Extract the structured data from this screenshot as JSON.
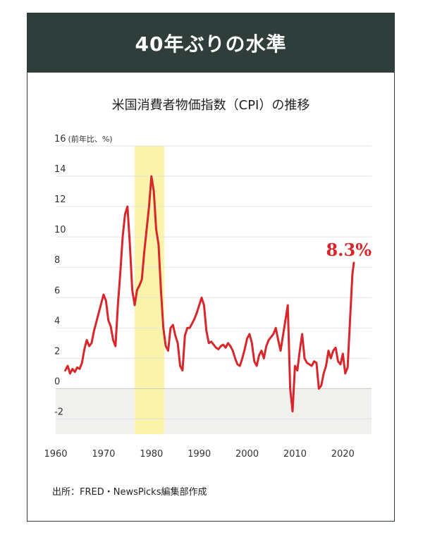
{
  "header": {
    "title": "40年ぶりの水準"
  },
  "chart_data": {
    "type": "line",
    "title": "米国消費者物価指数（CPI）の推移",
    "ylabel": "(前年比、%)",
    "ylim": [
      -3,
      16
    ],
    "xlim": [
      1960,
      2026
    ],
    "y_ticks": [
      16,
      14,
      12,
      10,
      8,
      6,
      4,
      2,
      0,
      -2
    ],
    "x_ticks": [
      1960,
      1970,
      1980,
      1990,
      2000,
      2010,
      2020
    ],
    "highlight_band": {
      "from": 1976.5,
      "to": 1982.7,
      "color": "#fbf3a9"
    },
    "negative_zone_color": "#f0f0ef",
    "series_color": "#d8262b",
    "grid": true,
    "annotation": {
      "text": "8.3%",
      "x": 2022.3,
      "y": 8.3
    },
    "series": [
      {
        "x": [
          1962.0,
          1962.5,
          1963.0,
          1963.5,
          1964.0,
          1964.5,
          1965.0,
          1965.5,
          1966.0,
          1966.5,
          1967.0,
          1967.5,
          1968.0,
          1968.5,
          1969.0,
          1969.5,
          1970.0,
          1970.5,
          1971.0,
          1971.5,
          1972.0,
          1972.5,
          1973.0,
          1973.5,
          1974.0,
          1974.5,
          1975.0,
          1975.5,
          1976.0,
          1976.5,
          1977.0,
          1977.5,
          1978.0,
          1978.5,
          1979.0,
          1979.5,
          1980.0,
          1980.5,
          1981.0,
          1981.5,
          1982.0,
          1982.5,
          1983.0,
          1983.5,
          1984.0,
          1984.5,
          1985.0,
          1985.5,
          1986.0,
          1986.5,
          1987.0,
          1987.5,
          1988.0,
          1988.5,
          1989.0,
          1989.5,
          1990.0,
          1990.5,
          1991.0,
          1991.5,
          1992.0,
          1992.5,
          1993.0,
          1993.5,
          1994.0,
          1994.5,
          1995.0,
          1995.5,
          1996.0,
          1996.5,
          1997.0,
          1997.5,
          1998.0,
          1998.5,
          1999.0,
          1999.5,
          2000.0,
          2000.5,
          2001.0,
          2001.5,
          2002.0,
          2002.5,
          2003.0,
          2003.5,
          2004.0,
          2004.5,
          2005.0,
          2005.5,
          2006.0,
          2006.5,
          2007.0,
          2007.5,
          2008.0,
          2008.5,
          2009.0,
          2009.5,
          2010.0,
          2010.5,
          2011.0,
          2011.5,
          2012.0,
          2012.5,
          2013.0,
          2013.5,
          2014.0,
          2014.5,
          2015.0,
          2015.5,
          2016.0,
          2016.5,
          2017.0,
          2017.5,
          2018.0,
          2018.5,
          2019.0,
          2019.5,
          2020.0,
          2020.5,
          2021.0,
          2021.5,
          2022.0,
          2022.3
        ],
        "y": [
          1.2,
          1.5,
          1.0,
          1.3,
          1.1,
          1.4,
          1.3,
          1.7,
          2.6,
          3.2,
          2.8,
          3.0,
          3.8,
          4.4,
          5.0,
          5.6,
          6.2,
          5.8,
          4.5,
          4.1,
          3.2,
          2.8,
          5.5,
          7.6,
          10.0,
          11.5,
          12.0,
          9.5,
          6.5,
          5.5,
          6.5,
          6.8,
          7.2,
          9.0,
          10.5,
          12.0,
          14.0,
          13.0,
          10.5,
          9.5,
          6.5,
          4.0,
          2.8,
          2.5,
          4.0,
          4.2,
          3.5,
          3.0,
          1.5,
          1.2,
          3.5,
          4.0,
          4.0,
          4.3,
          4.6,
          5.0,
          5.5,
          6.0,
          5.5,
          3.8,
          3.0,
          3.1,
          2.9,
          2.7,
          2.6,
          2.8,
          2.9,
          2.7,
          3.0,
          2.8,
          2.5,
          2.0,
          1.6,
          1.5,
          2.0,
          2.6,
          3.3,
          3.6,
          3.0,
          1.8,
          1.5,
          2.2,
          2.5,
          2.0,
          2.8,
          3.2,
          3.4,
          3.6,
          4.0,
          3.2,
          2.5,
          3.5,
          4.5,
          5.5,
          0.0,
          -1.5,
          1.5,
          1.2,
          2.5,
          3.6,
          2.0,
          1.7,
          1.6,
          1.5,
          1.8,
          1.7,
          0.0,
          0.2,
          1.0,
          1.5,
          2.5,
          2.0,
          2.5,
          2.7,
          1.8,
          1.6,
          2.3,
          1.0,
          1.4,
          4.5,
          7.5,
          8.3
        ]
      }
    ]
  },
  "source": "出所：FRED・NewsPicks編集部作成"
}
